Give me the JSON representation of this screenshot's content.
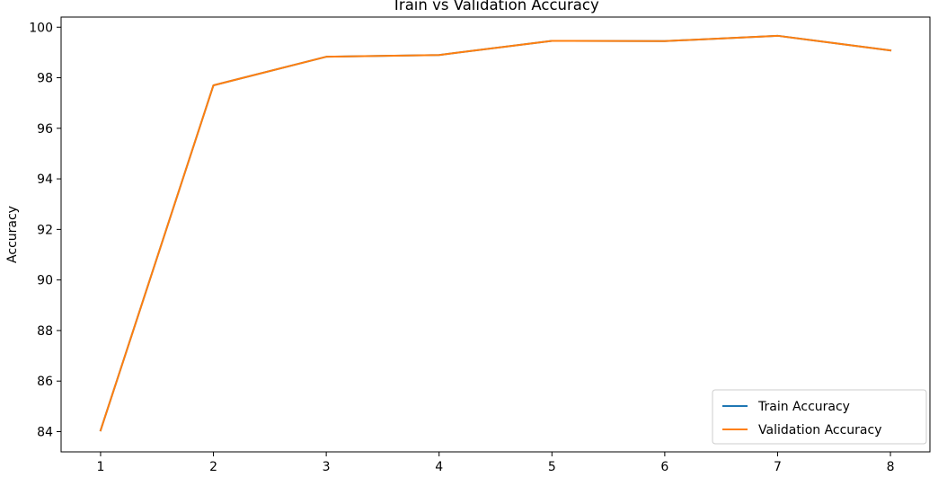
{
  "chart_data": {
    "type": "line",
    "title": "Train vs Validation Accuracy",
    "xlabel": "",
    "ylabel": "Accuracy",
    "x": [
      1,
      2,
      3,
      4,
      5,
      6,
      7,
      8
    ],
    "xticks": [
      "1",
      "2",
      "3",
      "4",
      "5",
      "6",
      "7",
      "8"
    ],
    "yticks": [
      "84",
      "86",
      "88",
      "90",
      "92",
      "94",
      "96",
      "98",
      "100"
    ],
    "xlim": [
      0.65,
      8.35
    ],
    "ylim": [
      83.2,
      100.4
    ],
    "grid": false,
    "legend_position": "lower right",
    "series": [
      {
        "name": "Train Accuracy",
        "color": "#1f77b4",
        "values": [
          84.05,
          97.7,
          98.83,
          98.9,
          99.46,
          99.45,
          99.66,
          99.08
        ]
      },
      {
        "name": "Validation Accuracy",
        "color": "#ff7f0e",
        "values": [
          84.05,
          97.7,
          98.83,
          98.9,
          99.46,
          99.45,
          99.66,
          99.08
        ]
      }
    ]
  }
}
